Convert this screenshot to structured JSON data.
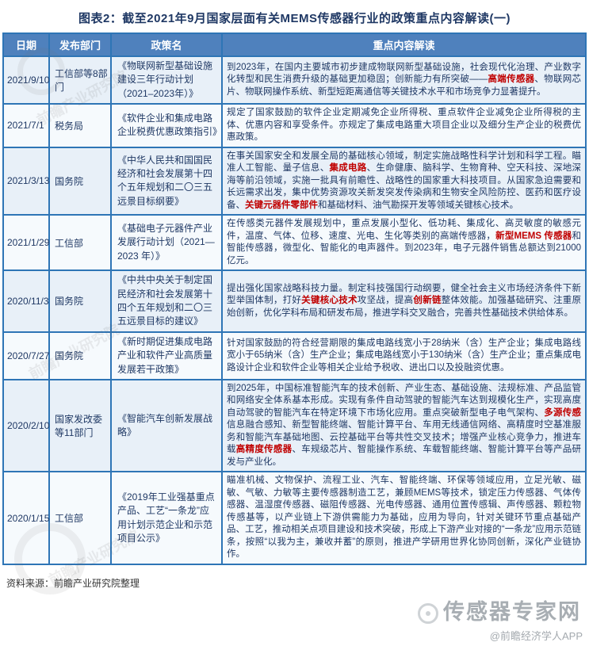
{
  "title": "图表2：截至2021年9月国家层面有关MEMS传感器行业的政策重点内容解读(一)",
  "colors": {
    "header_bg": "#4F81BD",
    "border_blue": "#2E75B6",
    "accent_red": "#C00000",
    "body_text": "#1F3864"
  },
  "table": {
    "headers": [
      "日期",
      "发布部门",
      "政策名",
      "重点内容解读"
    ],
    "rows": [
      {
        "date": "2021/9/10",
        "dept": "工信部等8部门",
        "policy": "《物联网新型基础设施建设三年行动计划（2021–2023年）》",
        "content": [
          {
            "t": "到2023年，在国内主要城市初步建成物联网新型基础设施，社会现代化治理、产业数字化转型和民生消费升级的基础更加稳固；创新能力有所突破——"
          },
          {
            "t": "高端传感器",
            "em": true
          },
          {
            "t": "、物联网芯片、物联网操作系统、新型短距离通信等关键技术水平和市场竞争力显著提升。"
          }
        ]
      },
      {
        "date": "2021/7/1",
        "dept": "税务局",
        "policy": "《软件企业和集成电路企业税费优惠政策指引》",
        "content": [
          {
            "t": "规定了国家鼓励的软件企业定期减免企业所得税、重点软件企业减免企业所得税的主体、优惠内容和享受条件。亦规定了集成电路重大项目企业以及细分生产企业的税费优惠政策。"
          }
        ]
      },
      {
        "date": "2021/3/13",
        "dept": "国务院",
        "policy": "《中华人民共和国国民经济和社会发展第十四个五年规划和二〇三五远景目标纲要》",
        "content": [
          {
            "t": "在事关国家安全和发展全局的基础核心领域，制定实施战略性科学计划和科学工程。瞄准人工智能、量子信息、"
          },
          {
            "t": "集成电路",
            "em": true
          },
          {
            "t": "、生命健康、脑科学、生物育种、空天科技、深地深海等前沿领域，实施一批具有前瞻性、战略性的国家重大科技项目。从国家急迫需要和长远需求出发，集中优势资源攻关新发突发传染病和生物安全风险防控、医药和医疗设备、"
          },
          {
            "t": "关键元器件零部件",
            "em": true
          },
          {
            "t": "和基础材料、油气勘探开发等领域关键核心技术。"
          }
        ]
      },
      {
        "date": "2021/1/29",
        "dept": "工信部",
        "policy": "《基础电子元器件产业发展行动计划（2021—2023 年）》",
        "content": [
          {
            "t": "在传感类元器件发展规划中，重点发展小型化、低功耗、集成化、高灵敏度的敏感元件，温度、气体、位移、速度、光电、生化等类别的高端传感器，"
          },
          {
            "t": "新型MEMS 传感器",
            "em": true
          },
          {
            "t": "和智能传感器，微型化、智能化的电声器件。到2023年，电子元器件销售总额达到21000亿元。"
          }
        ]
      },
      {
        "date": "2020/11/3",
        "dept": "国务院",
        "policy": "《中共中央关于制定国民经济和社会发展第十四个五年规划和二〇三五远景目标的建议》",
        "content": [
          {
            "t": "提出强化国家战略科技力量。制定科技强国行动纲要，健全社会主义市场经济条件下新型举国体制，打好"
          },
          {
            "t": "关键核心技术",
            "em": true
          },
          {
            "t": "攻坚战，提高"
          },
          {
            "t": "创新链",
            "em": true
          },
          {
            "t": "整体效能。加强基础研究、注重原始创新，优化学科布局和研发布局，推进学科交叉融合，完善共性基础技术供给体系。"
          }
        ]
      },
      {
        "date": "2020/7/27",
        "dept": "国务院",
        "policy": "《新时期促进集成电路产业和软件产业高质量发展若干政策》",
        "content": [
          {
            "t": "针对国家鼓励的符合经营期限的集成电路线宽小于28纳米（含）生产企业；集成电路线宽小于65纳米（含）生产企业；集成电路线宽小于130纳米（含）生产企业；重点集成电路设计企业和软件企业等相关企业给予税收、进出口以及投融资优惠。"
          }
        ]
      },
      {
        "date": "2020/2/10",
        "dept": "国家发改委等11部门",
        "policy": "《智能汽车创新发展战略》",
        "content": [
          {
            "t": "到2025年，中国标准智能汽车的技术创新、产业生态、基础设施、法规标准、产品监管和网络安全体系基本形成。实现有条件自动驾驶的智能汽车达到规模化生产，实现高度自动驾驶的智能汽车在特定环境下市场化应用。重点突破新型电子电气架构、"
          },
          {
            "t": "多源传感",
            "em": true
          },
          {
            "t": "信息融合感知、新型智能终端、智能计算平台、车用无线通信网络、高精度时空基准服务和智能汽车基础地图、云控基础平台等共性交叉技术；增强产业核心竞争力，推进车载"
          },
          {
            "t": "高精度传感器",
            "em": true
          },
          {
            "t": "、车规级芯片、智能操作系统、车载智能终端、智能计算平台等产品研发与产业化。"
          }
        ]
      },
      {
        "date": "2020/1/15",
        "dept": "工信部",
        "policy": "《2019年工业强基重点产品、工艺“一条龙”应用计划示范企业和示范项目公示》",
        "content": [
          {
            "t": "瞄准机械、文物保护、流程工业、汽车、智能终端、环保等领域应用，立足光敏、磁敏、气敏、力敏等主要传感器制造工艺，兼顾MEMS等技术，锁定压力传感器、气体传感器、温湿度传感器、磁阻传感器、光电传感器、通用位置传感辑、声传感器、颗粒物传感基等，以产业链上下游供需能力为基础，应用为导向，针对关键环节重点基础产品、工艺，推动相关点项目建设和技术突破，形成上下游产业对接的“一条龙”应用示范链条，按照“以我为主，兼收并蓄”的原则，推进产学研用世界化协同创新，深化产业链协作。"
          }
        ]
      }
    ]
  },
  "footer": {
    "source": "资料来源：前瞻产业研究院整理"
  },
  "watermarks": {
    "brand_large": "传感器专家网",
    "brand_small": "@前瞻经济学人APP",
    "diagonal": "前瞻产业研究院"
  }
}
